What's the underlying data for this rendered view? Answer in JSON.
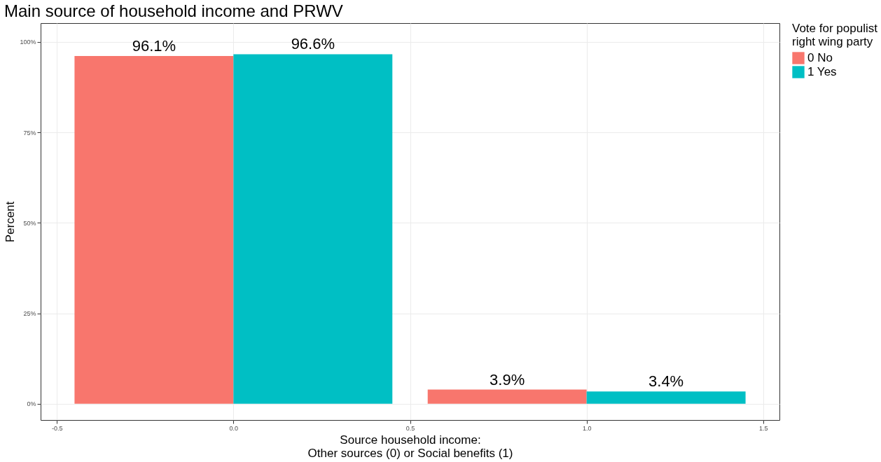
{
  "chart_data": {
    "type": "bar",
    "title": "Main source of household income and PRWV",
    "xlabel": "Source household income:\nOther sources (0) or Social benefits (1)",
    "ylabel": "Percent",
    "legend_title": "Vote for populist\nright wing party",
    "x": [
      0,
      1
    ],
    "series": [
      {
        "name": "0 No",
        "color": "#f8766d",
        "values": [
          96.1,
          3.9
        ],
        "value_labels": [
          "96.1%",
          "3.9%"
        ]
      },
      {
        "name": "1 Yes",
        "color": "#00bfc4",
        "values": [
          96.6,
          3.4
        ],
        "value_labels": [
          "96.6%",
          "3.4%"
        ]
      }
    ],
    "xlim": [
      -0.546,
      1.546
    ],
    "xticks": [
      -0.5,
      {
        "value": 0,
        "label": "0.0"
      },
      0.5,
      {
        "value": 1,
        "label": "1.0"
      },
      1.5
    ],
    "ylim": [
      -4.5,
      105.2
    ],
    "yticks": [
      {
        "value": 0,
        "label": "0%"
      },
      {
        "value": 25,
        "label": "25%"
      },
      {
        "value": 50,
        "label": "50%"
      },
      {
        "value": 75,
        "label": "75%"
      },
      {
        "value": 100,
        "label": "100%"
      }
    ],
    "grid": true,
    "legend": "right"
  }
}
